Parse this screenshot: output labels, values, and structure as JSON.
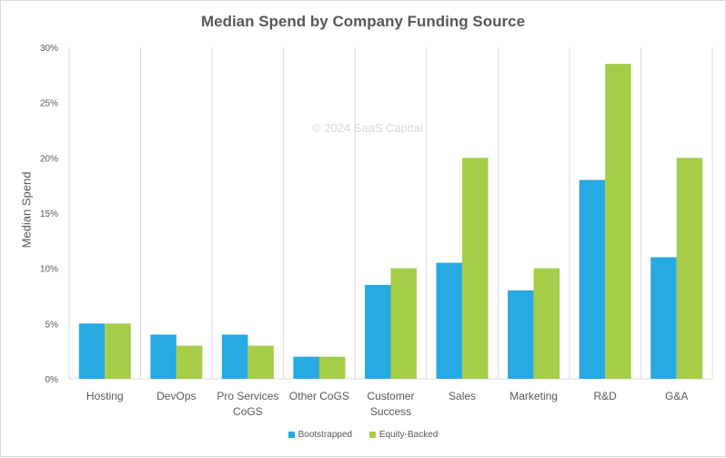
{
  "chart_data": {
    "type": "bar",
    "title": "Median Spend by Company Funding Source",
    "xlabel": "",
    "ylabel": "Median Spend",
    "ylim": [
      0,
      30
    ],
    "yticks": [
      "0%",
      "5%",
      "10%",
      "15%",
      "20%",
      "25%",
      "30%"
    ],
    "grid": "vertical separators",
    "legend": "bottom",
    "watermark": "© 2024 SaaS Capital",
    "categories": [
      "Hosting",
      "DevOps",
      "Pro Services CoGS",
      "Other CoGS",
      "Customer Success",
      "Sales",
      "Marketing",
      "R&D",
      "G&A"
    ],
    "series": [
      {
        "name": "Bootstrapped",
        "color": "#27a9e1",
        "values": [
          5,
          4,
          4,
          2,
          8.5,
          10.5,
          8,
          18,
          11
        ]
      },
      {
        "name": "Equity-Backed",
        "color": "#a5cd48",
        "values": [
          5,
          3,
          3,
          2,
          10,
          20,
          10,
          28.5,
          20
        ]
      }
    ]
  }
}
